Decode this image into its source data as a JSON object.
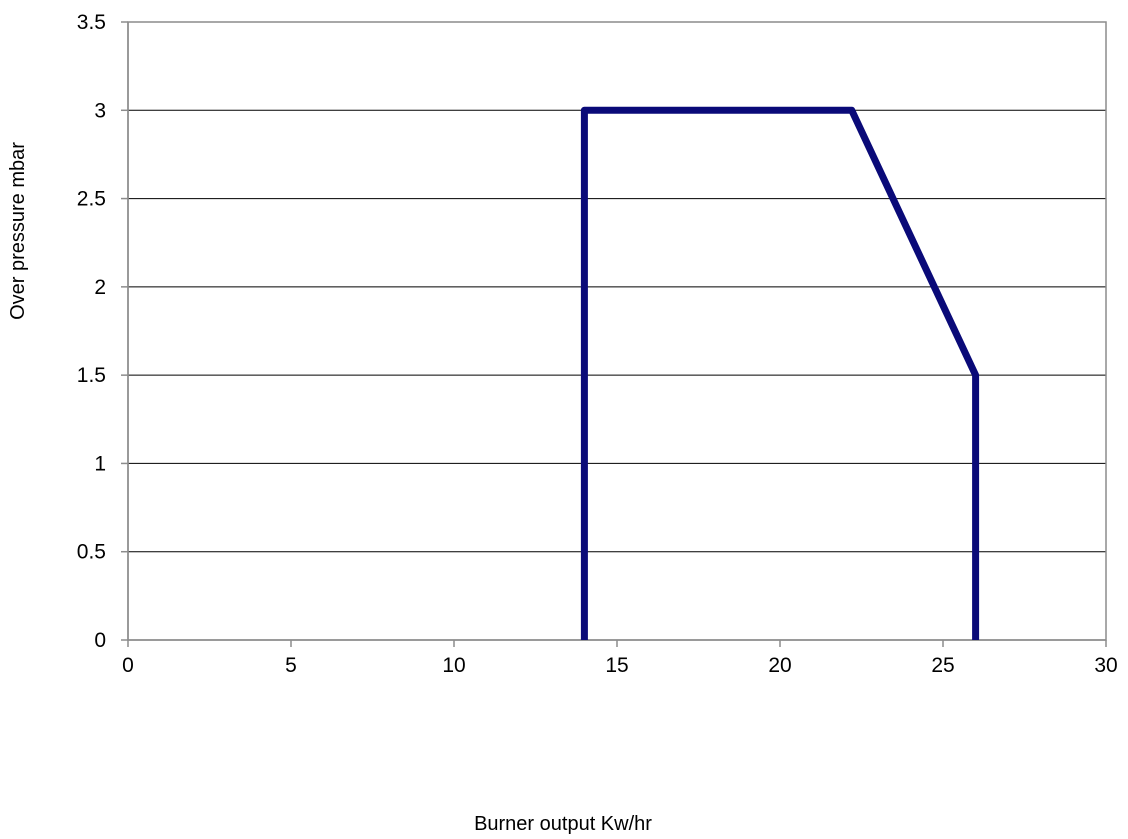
{
  "chart_data": {
    "type": "line",
    "title": "",
    "xlabel": "Burner output Kw/hr",
    "ylabel": "Over pressure mbar",
    "xlim": [
      0,
      30
    ],
    "ylim": [
      0,
      3.5
    ],
    "x_ticks": [
      0,
      5,
      10,
      15,
      20,
      25,
      30
    ],
    "y_ticks": [
      0,
      0.5,
      1,
      1.5,
      2,
      2.5,
      3,
      3.5
    ],
    "grid": {
      "horizontal": true,
      "vertical": false
    },
    "legend": "none",
    "series": [
      {
        "color": "#0a0a78",
        "points": [
          {
            "x": 14,
            "y": 0
          },
          {
            "x": 14,
            "y": 3
          },
          {
            "x": 22.2,
            "y": 3
          },
          {
            "x": 26,
            "y": 1.5
          },
          {
            "x": 26,
            "y": 0
          }
        ]
      }
    ]
  }
}
